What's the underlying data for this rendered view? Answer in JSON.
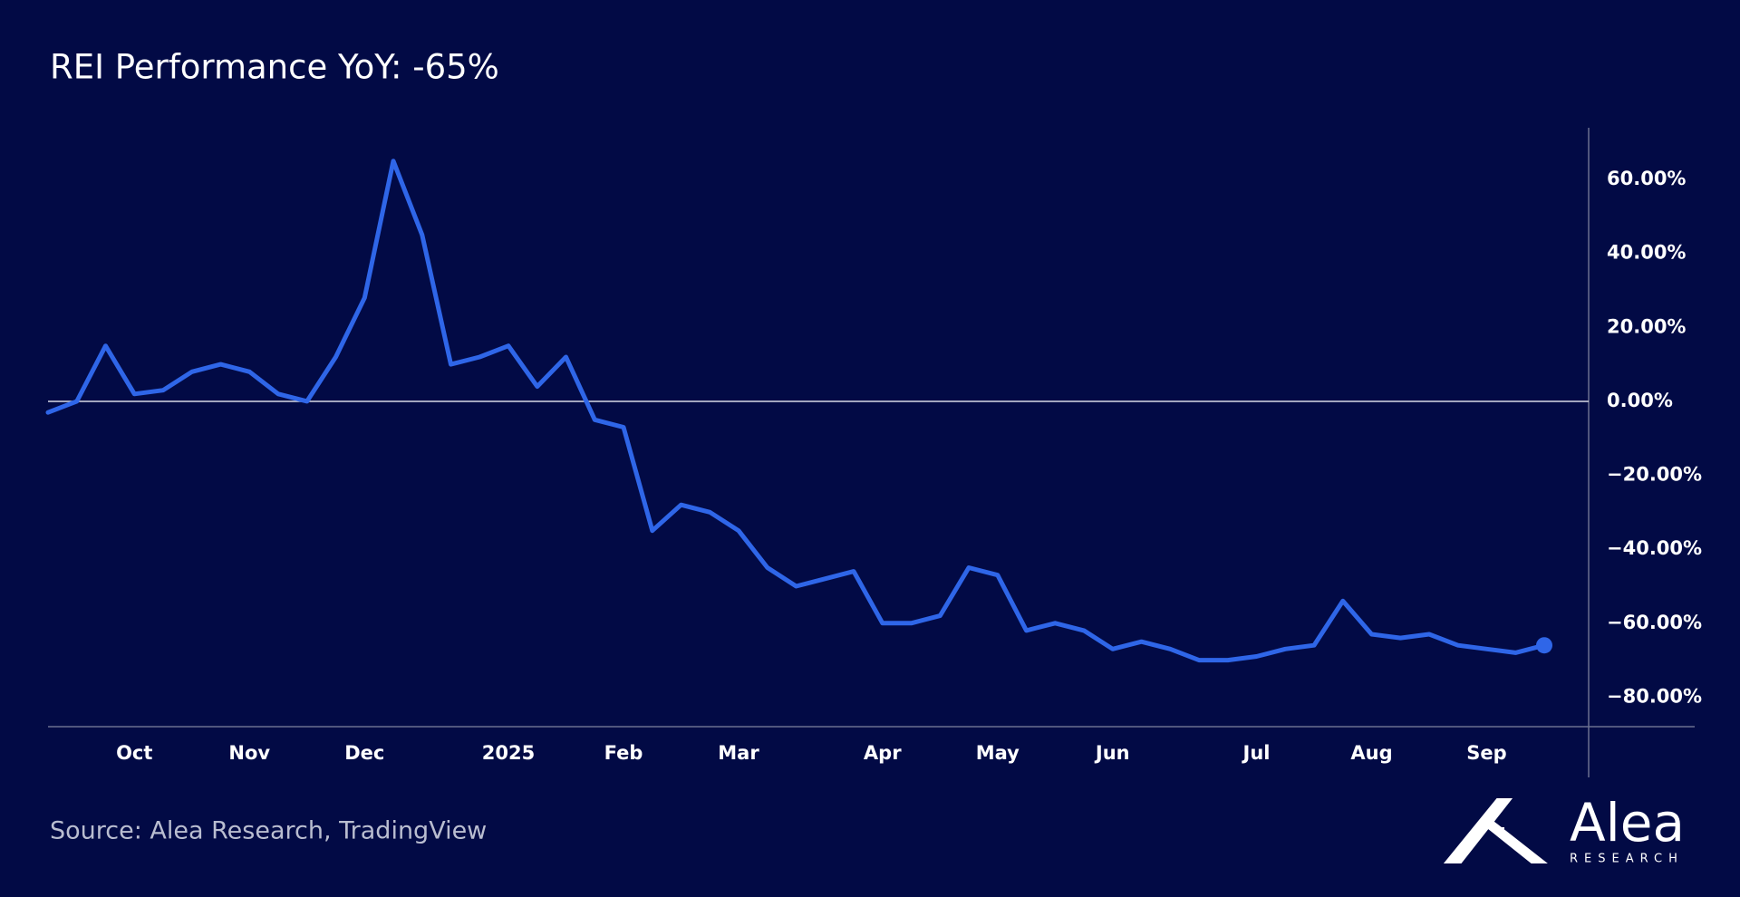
{
  "chart_data": {
    "type": "line",
    "title": "REI Performance YoY: -65%",
    "source": "Source: Alea Research, TradingView",
    "logo": {
      "name": "Alea",
      "subtitle": "RESEARCH"
    },
    "categories": [
      null,
      null,
      null,
      "Oct",
      null,
      null,
      null,
      "Nov",
      null,
      null,
      null,
      "Dec",
      null,
      null,
      null,
      null,
      "2025",
      null,
      null,
      null,
      "Feb",
      null,
      null,
      null,
      "Mar",
      null,
      null,
      null,
      null,
      "Apr",
      null,
      null,
      null,
      "May",
      null,
      null,
      null,
      "Jun",
      null,
      null,
      null,
      null,
      "Jul",
      null,
      null,
      null,
      "Aug",
      null,
      null,
      null,
      "Sep",
      null,
      null
    ],
    "values": [
      -3,
      0,
      15,
      2,
      3,
      8,
      10,
      8,
      2,
      0,
      12,
      28,
      65,
      45,
      10,
      12,
      15,
      4,
      12,
      -5,
      -7,
      -35,
      -28,
      -30,
      -35,
      -45,
      -50,
      -48,
      -46,
      -60,
      -60,
      -58,
      -45,
      -47,
      -62,
      -60,
      -62,
      -67,
      -65,
      -67,
      -70,
      -70,
      -69,
      -67,
      -66,
      -54,
      -63,
      -64,
      -63,
      -66,
      -67,
      -68,
      -66
    ],
    "color": "#2f66e8",
    "ylim": [
      -88,
      74
    ],
    "yticks": [
      {
        "value": -80,
        "label": "−80.00%"
      },
      {
        "value": -60,
        "label": "−60.00%"
      },
      {
        "value": -40,
        "label": "−40.00%"
      },
      {
        "value": -20,
        "label": "−20.00%"
      },
      {
        "value": 0,
        "label": "0.00%"
      },
      {
        "value": 20,
        "label": "20.00%"
      },
      {
        "value": 40,
        "label": "40.00%"
      },
      {
        "value": 60,
        "label": "60.00%"
      }
    ],
    "zero_line": true
  }
}
